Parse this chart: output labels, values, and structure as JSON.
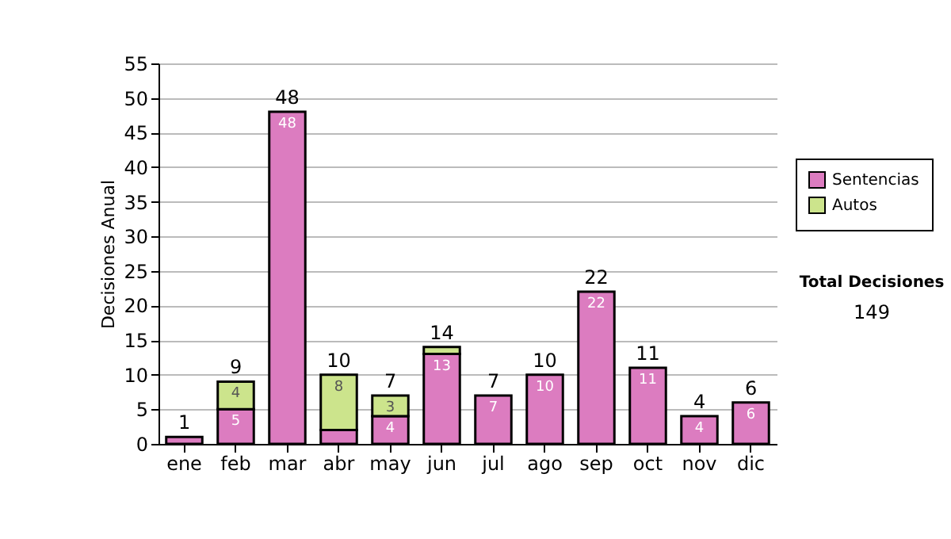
{
  "chart_data": {
    "type": "bar",
    "stacked": true,
    "ylabel": "Decisiones Anual",
    "categories": [
      "ene",
      "feb",
      "mar",
      "abr",
      "may",
      "jun",
      "jul",
      "ago",
      "sep",
      "oct",
      "nov",
      "dic"
    ],
    "series": [
      {
        "name": "Sentencias",
        "color": "#dc7cc0",
        "values": [
          1,
          5,
          48,
          2,
          4,
          13,
          7,
          10,
          22,
          11,
          4,
          6
        ],
        "value_labels": [
          null,
          "5",
          "48",
          null,
          "4",
          "13",
          "7",
          "10",
          "22",
          "11",
          "4",
          "6"
        ]
      },
      {
        "name": "Autos",
        "color": "#cce48c",
        "values": [
          null,
          4,
          null,
          8,
          3,
          1,
          null,
          null,
          null,
          null,
          null,
          null
        ],
        "value_labels": [
          null,
          "4",
          null,
          "8",
          "3",
          null,
          null,
          null,
          null,
          null,
          null,
          null
        ]
      }
    ],
    "totals": [
      "1",
      "9",
      "48",
      "10",
      "7",
      "14",
      "7",
      "10",
      "22",
      "11",
      "4",
      "6"
    ],
    "ylim": [
      0,
      55
    ],
    "yticks": [
      0,
      5,
      10,
      15,
      20,
      25,
      30,
      35,
      40,
      45,
      50,
      55
    ],
    "grid": "y",
    "legend": "right",
    "annotations": [
      "Total Decisiones",
      "149"
    ]
  }
}
